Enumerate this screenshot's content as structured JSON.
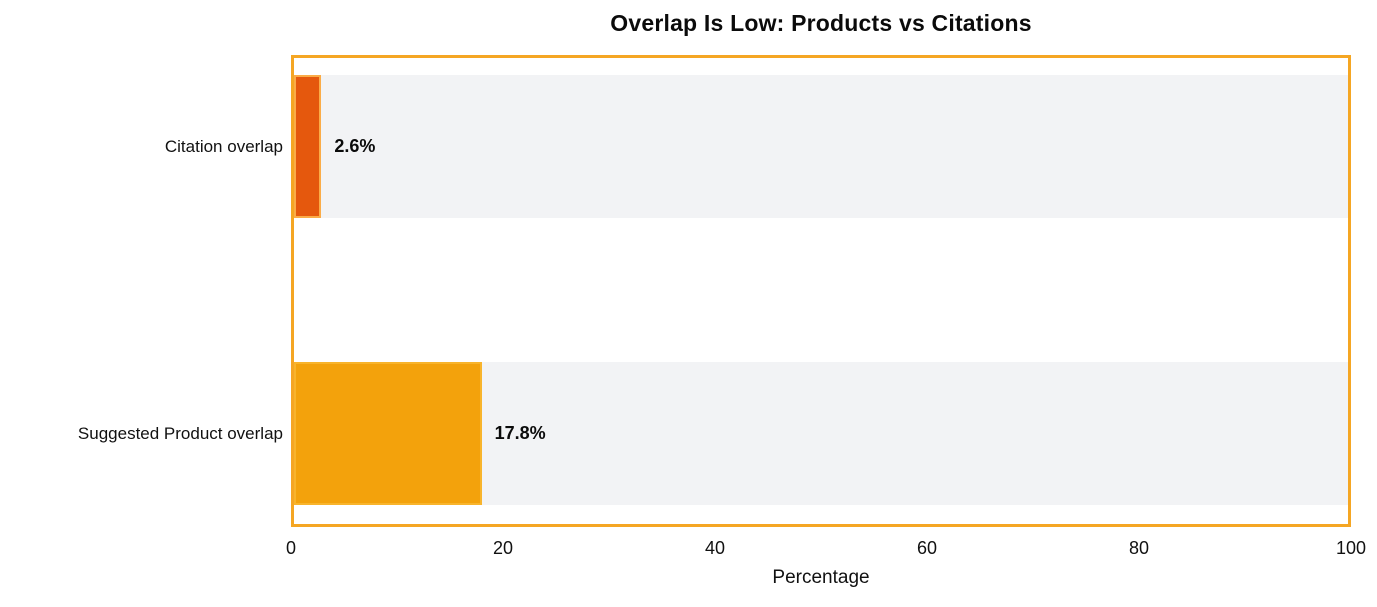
{
  "chart_data": {
    "type": "bar",
    "orientation": "horizontal",
    "title": "Overlap Is Low: Products vs Citations",
    "categories": [
      "Citation overlap",
      "Suggested Product overlap"
    ],
    "values": [
      2.6,
      17.8
    ],
    "value_labels": [
      "2.6%",
      "17.8%"
    ],
    "xlabel": "Percentage",
    "xlim": [
      0,
      100
    ],
    "xticks": [
      0,
      20,
      40,
      60,
      80,
      100
    ],
    "xtick_labels": [
      "0",
      "20",
      "40",
      "60",
      "80",
      "100"
    ],
    "grid": false,
    "legend_position": "none",
    "colors": {
      "bar_citation_overlap": "#E5580D",
      "bar_suggested_product_overlap": "#F3A20C",
      "bar_edge": "#FBAC47",
      "row_track": "#F2F3F5",
      "frame_border": "#F5A623",
      "text": "#111111",
      "background": "#FFFFFF"
    }
  }
}
